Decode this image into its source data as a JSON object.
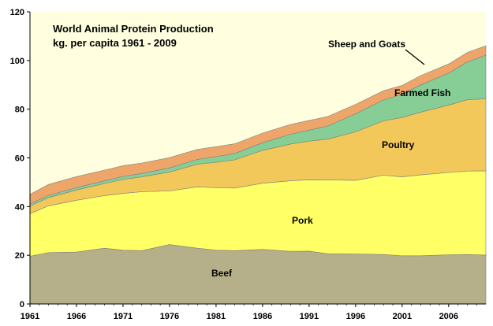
{
  "chart_data": {
    "type": "area",
    "stacked": true,
    "title": "World Animal Protein Production",
    "subtitle": "kg. per capita 1961 - 2009",
    "xlabel": "",
    "ylabel": "",
    "xlim": [
      1961,
      2010
    ],
    "ylim": [
      0,
      120
    ],
    "x_ticks": [
      1961,
      1966,
      1971,
      1976,
      1981,
      1986,
      1991,
      1996,
      2001,
      2006
    ],
    "y_ticks": [
      0,
      20,
      40,
      60,
      80,
      100,
      120
    ],
    "grid": false,
    "plot_background": "#FFFFE0",
    "legend": "inline labels",
    "x": [
      1961,
      1963,
      1966,
      1969,
      1971,
      1973,
      1976,
      1979,
      1981,
      1983,
      1986,
      1989,
      1991,
      1993,
      1996,
      1999,
      2001,
      2003,
      2006,
      2008,
      2010
    ],
    "series": [
      {
        "name": "Beef",
        "color": "#B5B08A",
        "values": [
          19.6,
          21.1,
          21.3,
          22.9,
          22.1,
          21.9,
          24.4,
          22.9,
          22.1,
          21.9,
          22.4,
          21.6,
          21.7,
          20.6,
          20.5,
          20.3,
          19.8,
          19.8,
          20.2,
          20.3,
          20.1
        ]
      },
      {
        "name": "Pork",
        "color": "#FFFF66",
        "values": [
          17.5,
          19.2,
          21.3,
          21.6,
          23.3,
          24.2,
          22.0,
          25.2,
          25.6,
          25.7,
          27.2,
          29.0,
          29.3,
          30.3,
          30.3,
          32.6,
          32.4,
          33.2,
          33.8,
          34.3,
          34.6
        ]
      },
      {
        "name": "Poultry",
        "color": "#F2C85A",
        "values": [
          3.1,
          3.4,
          4.2,
          5.0,
          5.7,
          6.1,
          7.8,
          9.3,
          10.5,
          11.6,
          13.5,
          15.1,
          15.9,
          16.8,
          19.9,
          22.3,
          24.4,
          25.8,
          27.7,
          29.3,
          29.6
        ]
      },
      {
        "name": "Farmed Fish",
        "color": "#86CE96",
        "values": [
          0.9,
          0.9,
          1.0,
          1.1,
          1.3,
          1.4,
          1.7,
          2.0,
          2.3,
          2.6,
          3.1,
          4.0,
          4.5,
          5.4,
          7.4,
          8.6,
          9.5,
          11.2,
          13.1,
          15.5,
          17.9
        ]
      },
      {
        "name": "Sheep and Goats",
        "color": "#EDA56A",
        "values": [
          3.9,
          4.5,
          4.5,
          4.4,
          4.4,
          4.3,
          4.2,
          4.1,
          4.1,
          4.0,
          4.0,
          4.0,
          4.0,
          3.9,
          3.9,
          3.8,
          3.7,
          3.8,
          3.8,
          3.9,
          3.9
        ]
      }
    ]
  },
  "colors": {
    "plot_background": "#FFFFE0",
    "outline": "#808080",
    "axis": "#000000"
  }
}
